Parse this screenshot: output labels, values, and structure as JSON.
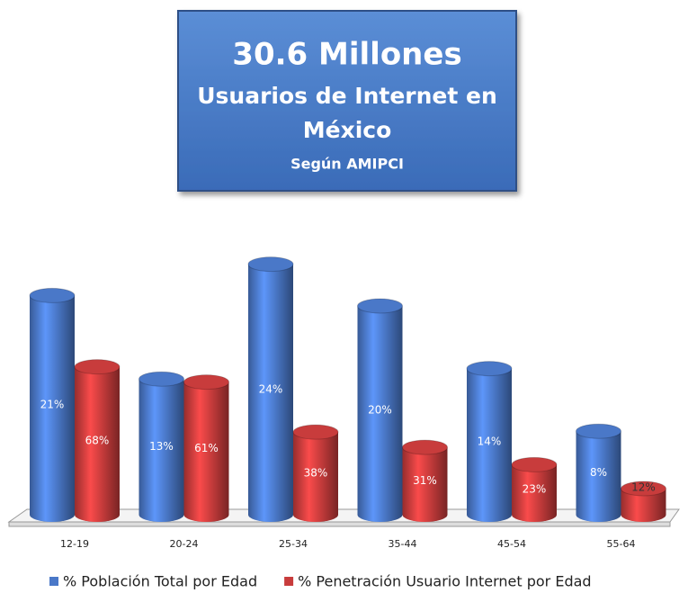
{
  "chart_data": {
    "type": "bar",
    "title": "30.6 Millones",
    "subtitle": "Usuarios de Internet en México",
    "annotation": "Según AMIPCI",
    "categories": [
      "12-19",
      "20-24",
      "25-34",
      "35-44",
      "45-54",
      "55-64"
    ],
    "series": [
      {
        "name": "% Población Total por Edad",
        "color": "#4a78c8",
        "values": [
          21,
          13,
          24,
          20,
          14,
          8
        ],
        "value_labels": [
          "21%",
          "13%",
          "24%",
          "20%",
          "14%",
          "8%"
        ]
      },
      {
        "name": "% Penetración Usuario Internet por Edad",
        "color": "#c83c3c",
        "axis": "y2",
        "values": [
          68,
          61,
          38,
          31,
          23,
          12
        ],
        "value_labels": [
          "68%",
          "61%",
          "38%",
          "31%",
          "23%",
          "12%"
        ]
      }
    ],
    "ylim": [
      0,
      25
    ],
    "y2lim": [
      0,
      120
    ],
    "legend": "bottom"
  }
}
